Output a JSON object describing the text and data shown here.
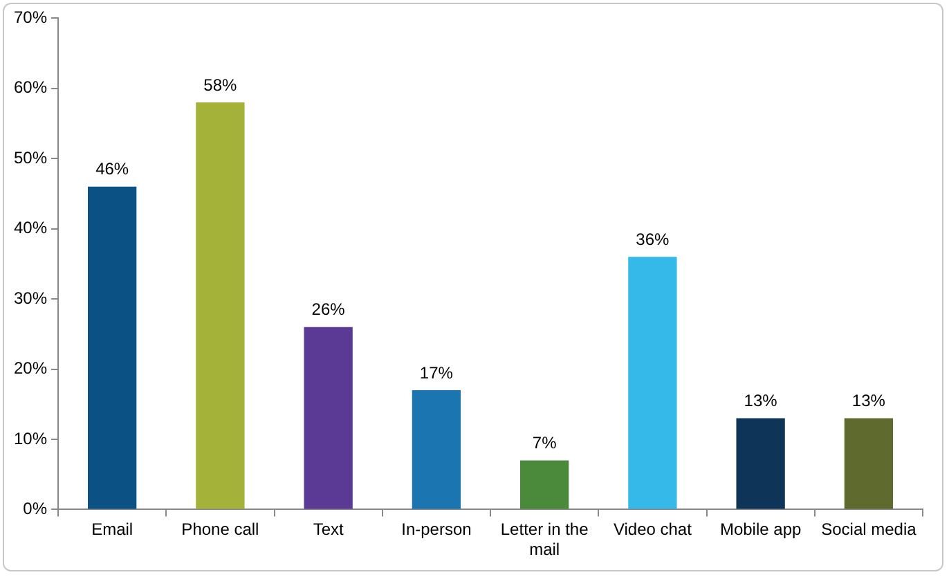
{
  "chart_data": {
    "type": "bar",
    "categories": [
      "Email",
      "Phone call",
      "Text",
      "In-person",
      "Letter in the mail",
      "Video chat",
      "Mobile app",
      "Social media"
    ],
    "values": [
      46,
      58,
      26,
      17,
      7,
      36,
      13,
      13
    ],
    "colors": [
      "#0b5184",
      "#a4b23a",
      "#5b3a96",
      "#1a75b0",
      "#4a8a3a",
      "#34b9e8",
      "#0e3557",
      "#5f6b2e"
    ],
    "value_labels": [
      "46%",
      "58%",
      "26%",
      "17%",
      "7%",
      "36%",
      "13%",
      "13%"
    ],
    "ylim": [
      0,
      70
    ],
    "yticks": [
      {
        "value": 0,
        "label": "0%"
      },
      {
        "value": 10,
        "label": "10%"
      },
      {
        "value": 20,
        "label": "20%"
      },
      {
        "value": 30,
        "label": "30%"
      },
      {
        "value": 40,
        "label": "40%"
      },
      {
        "value": 50,
        "label": "50%"
      },
      {
        "value": 60,
        "label": "60%"
      },
      {
        "value": 70,
        "label": "70%"
      }
    ],
    "grid": false,
    "legend": false
  }
}
